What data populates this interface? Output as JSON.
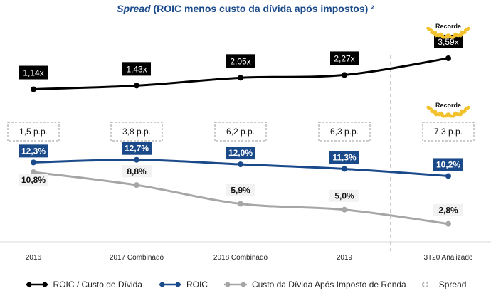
{
  "title": {
    "italic": "Spread",
    "rest": " (ROIC menos custo da dívida após impostos) ²"
  },
  "colors": {
    "ratio": "#000000",
    "roic": "#1a4a8a",
    "cost": "#a6a6a6",
    "spread_box": "#9a9a9a",
    "award": "#f2c12e"
  },
  "chart_data": {
    "type": "line",
    "categories": [
      "2016",
      "2017 Combinado",
      "2018 Combinado",
      "2019",
      "3T20 Analizado"
    ],
    "series": [
      {
        "name": "ROIC / Custo de Dívida",
        "values": [
          1.14,
          1.43,
          2.05,
          2.27,
          3.59
        ],
        "labels": [
          "1,14x",
          "1,43x",
          "2,05x",
          "2,27x",
          "3,59x"
        ]
      },
      {
        "name": "ROIC",
        "values": [
          12.3,
          12.7,
          12.0,
          11.3,
          10.2
        ],
        "labels": [
          "12,3%",
          "12,7%",
          "12,0%",
          "11,3%",
          "10,2%"
        ]
      },
      {
        "name": "Custo da Dívida Após Imposto de Renda",
        "values": [
          10.8,
          8.8,
          5.9,
          5.0,
          2.8
        ],
        "labels": [
          "10,8%",
          "8,8%",
          "5,9%",
          "5,0%",
          "2,8%"
        ]
      }
    ],
    "spread": {
      "name": "Spread",
      "labels": [
        "1,5 p.p.",
        "3,8 p.p.",
        "6,2 p.p.",
        "6,3 p.p.",
        "7,3 p.p."
      ]
    },
    "awards": [
      "Recorde",
      "Recorde"
    ]
  }
}
